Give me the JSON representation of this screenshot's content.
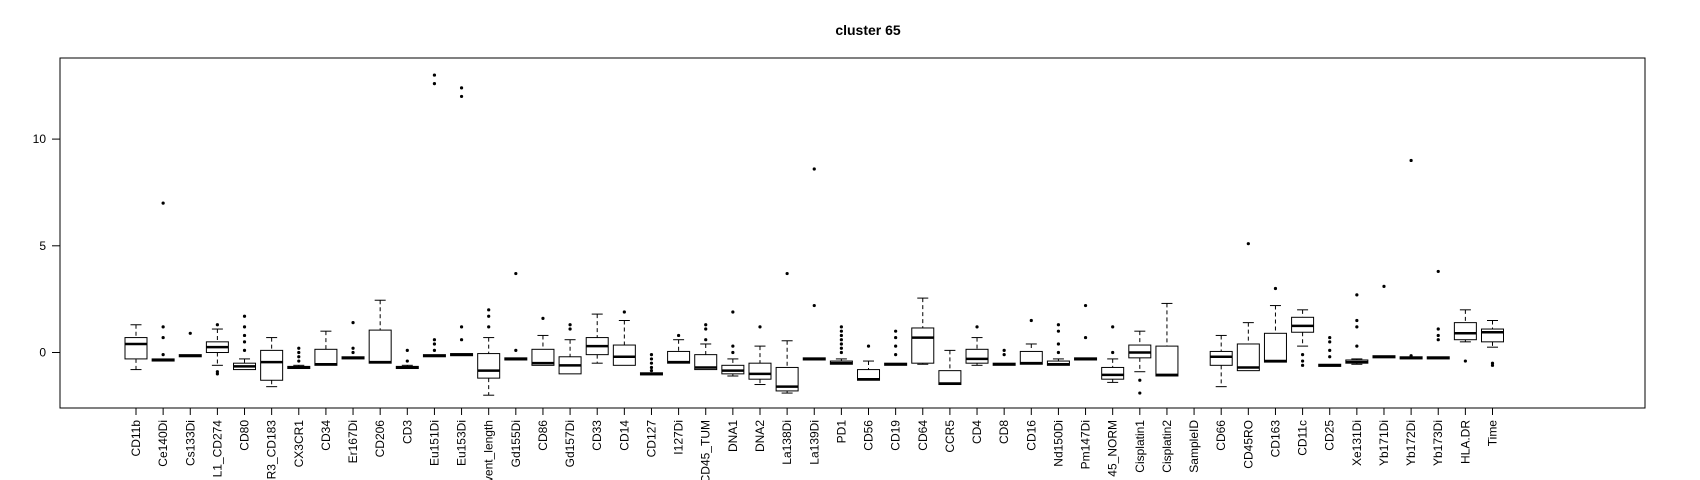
{
  "chart_data": {
    "type": "boxplot",
    "title": "cluster 65",
    "xlabel": "",
    "ylabel": "",
    "ylim": [
      -2.6,
      13.8
    ],
    "yticks": [
      0,
      5,
      10
    ],
    "grid": false,
    "categories": [
      "CD11b",
      "Ce140Di",
      "Cs133Di",
      "L1_CD274",
      "CD80",
      "R3_CD183",
      "CX3CR1",
      "CD34",
      "Er167Di",
      "CD206",
      "CD3",
      "Eu151Di",
      "Eu153Di",
      "vent_length",
      "Gd155Di",
      "CD86",
      "Gd157Di",
      "CD33",
      "CD14",
      "CD127",
      "I127Di",
      "CD45_TUM",
      "DNA1",
      "DNA2",
      "La138Di",
      "La139Di",
      "PD1",
      "CD56",
      "CD19",
      "CD64",
      "CCR5",
      "CD4",
      "CD8",
      "CD16",
      "Nd150Di",
      "Pm147Di",
      "45_NORM",
      "Cisplatin1",
      "Cisplatin2",
      "SampleID",
      "CD66",
      "CD45RO",
      "CD163",
      "CD11c",
      "CD25",
      "Xe131Di",
      "Yb171Di",
      "Yb172Di",
      "Yb173Di",
      "HLA.DR",
      "Time"
    ],
    "boxes": [
      {
        "q1": -0.3,
        "median": 0.4,
        "q3": 0.7,
        "lo": -0.8,
        "hi": 1.3,
        "outliers": []
      },
      {
        "q1": -0.4,
        "median": -0.35,
        "q3": -0.3,
        "lo": -0.4,
        "hi": -0.3,
        "outliers": [
          7.0,
          1.2,
          0.7,
          -0.1
        ]
      },
      {
        "q1": -0.2,
        "median": -0.15,
        "q3": -0.1,
        "lo": -0.2,
        "hi": -0.1,
        "outliers": [
          0.9
        ]
      },
      {
        "q1": 0.0,
        "median": 0.25,
        "q3": 0.5,
        "lo": -0.6,
        "hi": 1.1,
        "outliers": [
          1.3,
          -0.9,
          -1.0
        ]
      },
      {
        "q1": -0.8,
        "median": -0.65,
        "q3": -0.5,
        "lo": -0.8,
        "hi": -0.3,
        "outliers": [
          1.7,
          1.2,
          0.8,
          0.5,
          0.1
        ]
      },
      {
        "q1": -1.3,
        "median": -0.45,
        "q3": 0.1,
        "lo": -1.6,
        "hi": 0.7,
        "outliers": []
      },
      {
        "q1": -0.75,
        "median": -0.7,
        "q3": -0.65,
        "lo": -0.75,
        "hi": -0.6,
        "outliers": [
          0.2,
          0.0,
          -0.2,
          -0.4
        ]
      },
      {
        "q1": -0.6,
        "median": -0.55,
        "q3": 0.15,
        "lo": -0.6,
        "hi": 1.0,
        "outliers": []
      },
      {
        "q1": -0.3,
        "median": -0.25,
        "q3": -0.2,
        "lo": -0.3,
        "hi": -0.2,
        "outliers": [
          1.4,
          0.2,
          0.0
        ]
      },
      {
        "q1": -0.5,
        "median": -0.45,
        "q3": 1.05,
        "lo": -0.5,
        "hi": 2.45,
        "outliers": []
      },
      {
        "q1": -0.75,
        "median": -0.7,
        "q3": -0.65,
        "lo": -0.75,
        "hi": -0.6,
        "outliers": [
          0.1,
          -0.4
        ]
      },
      {
        "q1": -0.2,
        "median": -0.15,
        "q3": -0.1,
        "lo": -0.2,
        "hi": -0.1,
        "outliers": [
          13.0,
          12.6,
          0.6,
          0.4,
          0.1
        ]
      },
      {
        "q1": -0.15,
        "median": -0.1,
        "q3": -0.05,
        "lo": -0.15,
        "hi": -0.05,
        "outliers": [
          12.4,
          12.0,
          1.2,
          0.6
        ]
      },
      {
        "q1": -1.2,
        "median": -0.85,
        "q3": -0.05,
        "lo": -2.0,
        "hi": 0.7,
        "outliers": [
          2.0,
          1.7,
          1.2
        ]
      },
      {
        "q1": -0.35,
        "median": -0.3,
        "q3": -0.25,
        "lo": -0.35,
        "hi": -0.25,
        "outliers": [
          3.7,
          0.1
        ]
      },
      {
        "q1": -0.6,
        "median": -0.5,
        "q3": 0.15,
        "lo": -0.6,
        "hi": 0.8,
        "outliers": [
          1.6
        ]
      },
      {
        "q1": -1.0,
        "median": -0.6,
        "q3": -0.2,
        "lo": -1.0,
        "hi": 0.6,
        "outliers": [
          1.3,
          1.1
        ]
      },
      {
        "q1": -0.1,
        "median": 0.3,
        "q3": 0.7,
        "lo": -0.5,
        "hi": 1.8,
        "outliers": []
      },
      {
        "q1": -0.6,
        "median": -0.2,
        "q3": 0.35,
        "lo": -0.6,
        "hi": 1.5,
        "outliers": [
          1.9
        ]
      },
      {
        "q1": -1.05,
        "median": -1.0,
        "q3": -0.95,
        "lo": -1.05,
        "hi": -0.95,
        "outliers": [
          -0.1,
          -0.3,
          -0.5,
          -0.7,
          -0.85
        ]
      },
      {
        "q1": -0.5,
        "median": -0.45,
        "q3": 0.05,
        "lo": -0.5,
        "hi": 0.6,
        "outliers": [
          0.8
        ]
      },
      {
        "q1": -0.8,
        "median": -0.7,
        "q3": -0.1,
        "lo": -0.8,
        "hi": 0.4,
        "outliers": [
          1.3,
          1.1,
          0.6
        ]
      },
      {
        "q1": -1.0,
        "median": -0.85,
        "q3": -0.6,
        "lo": -1.1,
        "hi": -0.3,
        "outliers": [
          1.9,
          0.3,
          0.0
        ]
      },
      {
        "q1": -1.25,
        "median": -1.0,
        "q3": -0.5,
        "lo": -1.5,
        "hi": 0.3,
        "outliers": [
          1.2
        ]
      },
      {
        "q1": -1.8,
        "median": -1.6,
        "q3": -0.7,
        "lo": -1.9,
        "hi": 0.55,
        "outliers": [
          3.7
        ]
      },
      {
        "q1": -0.35,
        "median": -0.3,
        "q3": -0.25,
        "lo": -0.35,
        "hi": -0.25,
        "outliers": [
          8.6,
          2.2
        ]
      },
      {
        "q1": -0.55,
        "median": -0.5,
        "q3": -0.4,
        "lo": -0.55,
        "hi": -0.3,
        "outliers": [
          1.2,
          1.0,
          0.8,
          0.6,
          0.4,
          0.2,
          0.0
        ]
      },
      {
        "q1": -1.3,
        "median": -1.25,
        "q3": -0.8,
        "lo": -1.3,
        "hi": -0.4,
        "outliers": [
          0.3
        ]
      },
      {
        "q1": -0.6,
        "median": -0.55,
        "q3": -0.5,
        "lo": -0.6,
        "hi": -0.5,
        "outliers": [
          1.0,
          0.7,
          0.3,
          -0.1
        ]
      },
      {
        "q1": -0.5,
        "median": 0.7,
        "q3": 1.15,
        "lo": -0.55,
        "hi": 2.55,
        "outliers": []
      },
      {
        "q1": -1.5,
        "median": -1.45,
        "q3": -0.85,
        "lo": -1.5,
        "hi": 0.1,
        "outliers": []
      },
      {
        "q1": -0.5,
        "median": -0.3,
        "q3": 0.15,
        "lo": -0.6,
        "hi": 0.7,
        "outliers": [
          1.2
        ]
      },
      {
        "q1": -0.6,
        "median": -0.55,
        "q3": -0.5,
        "lo": -0.6,
        "hi": -0.5,
        "outliers": [
          0.1,
          -0.1
        ]
      },
      {
        "q1": -0.55,
        "median": -0.5,
        "q3": 0.05,
        "lo": -0.55,
        "hi": 0.4,
        "outliers": [
          1.5
        ]
      },
      {
        "q1": -0.6,
        "median": -0.55,
        "q3": -0.4,
        "lo": -0.6,
        "hi": -0.3,
        "outliers": [
          1.3,
          1.0,
          0.4,
          0.0
        ]
      },
      {
        "q1": -0.35,
        "median": -0.3,
        "q3": -0.25,
        "lo": -0.35,
        "hi": -0.25,
        "outliers": [
          2.2,
          0.7
        ]
      },
      {
        "q1": -1.25,
        "median": -1.05,
        "q3": -0.7,
        "lo": -1.4,
        "hi": -0.3,
        "outliers": [
          1.2,
          0.0
        ]
      },
      {
        "q1": -0.25,
        "median": 0.0,
        "q3": 0.35,
        "lo": -0.9,
        "hi": 1.0,
        "outliers": [
          -1.3,
          -1.9
        ]
      },
      {
        "q1": -1.1,
        "median": -1.05,
        "q3": 0.3,
        "lo": -1.1,
        "hi": 2.3,
        "outliers": []
      },
      null,
      {
        "q1": -0.6,
        "median": -0.2,
        "q3": 0.05,
        "lo": -1.6,
        "hi": 0.8,
        "outliers": []
      },
      {
        "q1": -0.85,
        "median": -0.7,
        "q3": 0.4,
        "lo": -0.85,
        "hi": 1.4,
        "outliers": [
          5.1
        ]
      },
      {
        "q1": -0.45,
        "median": -0.4,
        "q3": 0.9,
        "lo": -0.45,
        "hi": 2.2,
        "outliers": [
          3.0
        ]
      },
      {
        "q1": 0.95,
        "median": 1.25,
        "q3": 1.65,
        "lo": 0.3,
        "hi": 2.0,
        "outliers": [
          -0.1,
          -0.4,
          -0.6
        ]
      },
      {
        "q1": -0.65,
        "median": -0.6,
        "q3": -0.55,
        "lo": -0.65,
        "hi": -0.55,
        "outliers": [
          0.7,
          0.5,
          0.1,
          -0.2
        ]
      },
      {
        "q1": -0.5,
        "median": -0.45,
        "q3": -0.35,
        "lo": -0.55,
        "hi": -0.3,
        "outliers": [
          2.7,
          1.5,
          1.2,
          0.3
        ]
      },
      {
        "q1": -0.25,
        "median": -0.2,
        "q3": -0.15,
        "lo": -0.25,
        "hi": -0.15,
        "outliers": [
          3.1
        ]
      },
      {
        "q1": -0.3,
        "median": -0.25,
        "q3": -0.2,
        "lo": -0.3,
        "hi": -0.2,
        "outliers": [
          9.0,
          -0.15
        ]
      },
      {
        "q1": -0.3,
        "median": -0.25,
        "q3": -0.2,
        "lo": -0.3,
        "hi": -0.2,
        "outliers": [
          3.8,
          1.1,
          0.8,
          0.6
        ]
      },
      {
        "q1": 0.6,
        "median": 0.9,
        "q3": 1.4,
        "lo": 0.5,
        "hi": 2.0,
        "outliers": [
          -0.4
        ]
      },
      {
        "q1": 0.5,
        "median": 0.95,
        "q3": 1.1,
        "lo": 0.25,
        "hi": 1.5,
        "outliers": [
          -0.5,
          -0.6
        ]
      }
    ]
  }
}
